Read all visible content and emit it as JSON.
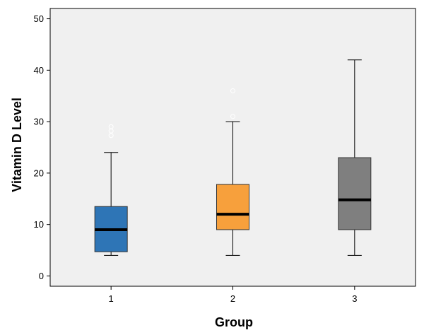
{
  "chart_data": {
    "type": "boxplot",
    "title": "",
    "xlabel": "Group",
    "ylabel": "Vitamin D Level",
    "ylim": [
      -2,
      52
    ],
    "yticks": [
      0,
      10,
      20,
      30,
      40,
      50
    ],
    "grid": false,
    "categories": [
      "1",
      "2",
      "3"
    ],
    "boxes": [
      {
        "category": "1",
        "min": 4,
        "q1": 4.7,
        "median": 9,
        "q3": 13.5,
        "max": 24,
        "outliers": [
          27.3,
          28.2,
          29
        ],
        "color": "#2e75b6"
      },
      {
        "category": "2",
        "min": 4,
        "q1": 9,
        "median": 12,
        "q3": 17.8,
        "max": 30,
        "outliers": [
          31,
          36
        ],
        "color": "#f7a03c"
      },
      {
        "category": "3",
        "min": 4,
        "q1": 9,
        "median": 14.8,
        "q3": 23,
        "max": 42,
        "outliers": [],
        "color": "#7f7f7f"
      }
    ],
    "plot_background": "#f0f0f0"
  }
}
